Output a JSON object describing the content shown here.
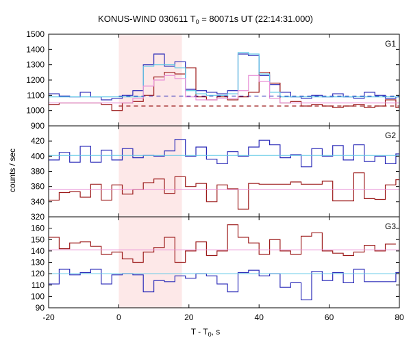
{
  "title": {
    "prefix": "KONUS-WIND 030611 T",
    "sub": "0",
    "suffix": " = 80071s UT (22:14:31.000)"
  },
  "xlabel": {
    "prefix": "T - T",
    "sub": "0",
    "suffix": ", s"
  },
  "ylabel": "counts / sec",
  "colors": {
    "blue": "#2b2bb8",
    "red": "#9c1a1a",
    "cyan": "#5ec8e6",
    "pink": "#e88fd6",
    "shade": "#fde8e8",
    "box": "#000000"
  },
  "chart_data": {
    "type": "line",
    "style": "step",
    "x_range": [
      -20,
      80
    ],
    "x_ticks": [
      "-20",
      "0",
      "20",
      "40",
      "60",
      "80"
    ],
    "shaded_interval": [
      0,
      18
    ],
    "bin_width": 3,
    "panels": [
      {
        "label": "G1",
        "ylim": [
          900,
          1500
        ],
        "y_ticks": [
          "900",
          "1000",
          "1100",
          "1200",
          "1300",
          "1400",
          "1500"
        ],
        "series": [
          {
            "color": "blue",
            "x0": -20,
            "values": [
              1110,
              1095,
              1090,
              1120,
              1090,
              1070,
              1080,
              1100,
              1130,
              1300,
              1370,
              1290,
              1320,
              1140,
              1130,
              1120,
              1110,
              1130,
              1370,
              1360,
              1230,
              1170,
              1120,
              1090,
              1080,
              1100,
              1090,
              1110,
              1090,
              1080,
              1120,
              1100,
              1080,
              1090
            ]
          },
          {
            "color": "red",
            "x0": -20,
            "values": [
              1040,
              1050,
              1050,
              1050,
              1050,
              1040,
              1000,
              1050,
              1060,
              1100,
              1220,
              1250,
              1240,
              1280,
              1090,
              1070,
              1090,
              1070,
              1090,
              1120,
              1250,
              1180,
              1050,
              1060,
              1030,
              1040,
              1030,
              1020,
              1030,
              1040,
              1020,
              1030,
              1070,
              1020
            ]
          },
          {
            "color": "cyan",
            "x0": -20,
            "values": [
              1090,
              1090,
              1090,
              1090,
              1090,
              1090,
              1090,
              1090,
              1090,
              1290,
              1300,
              1300,
              1280,
              1130,
              1110,
              1100,
              1100,
              1110,
              1380,
              1370,
              1240,
              1120,
              1090,
              1090,
              1090,
              1090,
              1090,
              1090,
              1090,
              1090,
              1090,
              1090,
              1090,
              1090
            ]
          },
          {
            "color": "pink",
            "x0": -20,
            "values": [
              1050,
              1050,
              1050,
              1050,
              1050,
              1050,
              1050,
              1050,
              1080,
              1160,
              1200,
              1230,
              1210,
              1090,
              1070,
              1070,
              1080,
              1080,
              1130,
              1230,
              1190,
              1080,
              1050,
              1050,
              1050,
              1050,
              1050,
              1050,
              1050,
              1050,
              1050,
              1050,
              1050,
              1050
            ]
          }
        ],
        "background_lines": [
          {
            "color": "blue",
            "value": 1095,
            "x": [
              0,
              80
            ]
          },
          {
            "color": "red",
            "value": 1030,
            "x": [
              0,
              80
            ]
          }
        ]
      },
      {
        "label": "G2",
        "ylim": [
          320,
          440
        ],
        "y_ticks": [
          "320",
          "340",
          "360",
          "380",
          "400",
          "420"
        ],
        "series": [
          {
            "color": "blue",
            "x0": -20,
            "values": [
              395,
              405,
              392,
              413,
              392,
              408,
              395,
              410,
              398,
              401,
              400,
              407,
              422,
              400,
              412,
              396,
              390,
              406,
              400,
              412,
              421,
              415,
              398,
              402,
              386,
              410,
              400,
              414,
              395,
              415,
              393,
              400,
              390,
              403
            ]
          },
          {
            "color": "red",
            "x0": -20,
            "values": [
              342,
              352,
              353,
              346,
              363,
              342,
              362,
              350,
              356,
              365,
              370,
              351,
              373,
              360,
              364,
              340,
              362,
              357,
              330,
              364,
              363,
              363,
              363,
              366,
              363,
              363,
              367,
              341,
              341,
              378,
              344,
              343,
              362,
              369
            ]
          },
          {
            "color": "cyan",
            "value": 401
          },
          {
            "color": "pink",
            "value": 356
          }
        ]
      },
      {
        "label": "G3",
        "ylim": [
          90,
          170
        ],
        "y_ticks": [
          "90",
          "100",
          "110",
          "120",
          "130",
          "140",
          "150",
          "160"
        ],
        "series": [
          {
            "color": "blue",
            "x0": -20,
            "values": [
              111,
              124,
              119,
              121,
              124,
              111,
              119,
              120,
              119,
              104,
              114,
              113,
              118,
              116,
              120,
              118,
              111,
              104,
              121,
              123,
              118,
              120,
              108,
              112,
              97,
              122,
              114,
              121,
              112,
              124,
              113,
              113,
              113,
              121,
              121,
              123
            ]
          },
          {
            "color": "red",
            "x0": -20,
            "values": [
              152,
              142,
              147,
              148,
              144,
              137,
              139,
              133,
              130,
              139,
              143,
              152,
              130,
              140,
              148,
              136,
              140,
              163,
              152,
              147,
              137,
              150,
              140,
              137,
              153,
              156,
              140,
              138,
              136,
              139,
              145,
              140,
              146
            ]
          },
          {
            "color": "cyan",
            "value": 120
          },
          {
            "color": "pink",
            "value": 141
          }
        ]
      }
    ]
  }
}
